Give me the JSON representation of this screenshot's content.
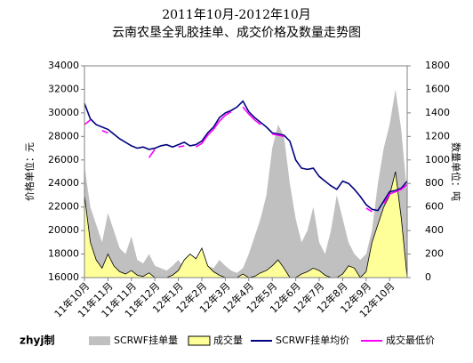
{
  "chart_data": {
    "type": "line",
    "title": "2011年10月-2012年10月",
    "subtitle": "云南农垦全乳胶挂单、成交价格及数量走势图",
    "y_label": "价格单位：元",
    "y2_label": "数量单位：吨",
    "credit": "zhyj制",
    "categories": [
      "11年10月",
      null,
      null,
      null,
      "11年11月",
      null,
      null,
      null,
      "11年11月",
      null,
      null,
      null,
      "11年12月",
      null,
      null,
      null,
      "12年1月",
      null,
      null,
      null,
      "12年2月",
      null,
      null,
      null,
      "12年3月",
      null,
      null,
      null,
      "12年4月",
      null,
      null,
      null,
      "12年5月",
      null,
      null,
      null,
      "12年6月",
      null,
      null,
      null,
      "12年7月",
      null,
      null,
      null,
      "12年8月",
      null,
      null,
      null,
      "12年9月",
      null,
      null,
      null,
      "12年10月",
      null,
      null,
      null
    ],
    "ylim": [
      16000,
      34000
    ],
    "yticks": [
      16000,
      18000,
      20000,
      22000,
      24000,
      26000,
      28000,
      30000,
      32000,
      34000
    ],
    "y2lim": [
      0,
      1800
    ],
    "y2ticks": [
      0,
      200,
      400,
      600,
      800,
      1000,
      1200,
      1400,
      1600,
      1800
    ],
    "grid": false,
    "legend": "bottom",
    "series": [
      {
        "name": "SCRWF挂单量",
        "kind": "area",
        "axis": "y2",
        "color": "#c0c0c0",
        "values": [
          950,
          600,
          450,
          300,
          550,
          400,
          250,
          200,
          350,
          150,
          120,
          200,
          100,
          80,
          60,
          100,
          150,
          80,
          50,
          120,
          200,
          100,
          80,
          150,
          100,
          60,
          40,
          80,
          200,
          350,
          500,
          700,
          1100,
          1300,
          1200,
          800,
          500,
          300,
          400,
          600,
          300,
          200,
          400,
          700,
          500,
          300,
          200,
          150,
          200,
          400,
          800,
          1100,
          1300,
          1600,
          1250,
          700
        ]
      },
      {
        "name": "成交量",
        "kind": "area",
        "axis": "y2",
        "color": "#ffff99",
        "values": [
          700,
          300,
          150,
          80,
          200,
          100,
          50,
          30,
          60,
          20,
          10,
          40,
          0,
          0,
          0,
          20,
          60,
          150,
          200,
          160,
          250,
          100,
          50,
          20,
          0,
          0,
          0,
          30,
          0,
          10,
          40,
          60,
          100,
          150,
          80,
          0,
          0,
          30,
          50,
          80,
          60,
          20,
          0,
          0,
          30,
          100,
          80,
          0,
          50,
          300,
          450,
          600,
          700,
          900,
          500,
          0
        ]
      },
      {
        "name": "SCRWF挂单均价",
        "kind": "line",
        "axis": "y",
        "color": "#000080",
        "values": [
          30800,
          29500,
          29000,
          28800,
          28600,
          28200,
          27800,
          27500,
          27200,
          27000,
          27100,
          26900,
          27000,
          27200,
          27300,
          27100,
          27300,
          27500,
          27200,
          27300,
          27600,
          28300,
          28800,
          29600,
          30000,
          30200,
          30500,
          31000,
          30100,
          29600,
          29200,
          28800,
          28300,
          28200,
          28100,
          27600,
          26000,
          25300,
          25200,
          25300,
          24600,
          24200,
          23800,
          23500,
          24200,
          24000,
          23500,
          22900,
          22200,
          21800,
          21700,
          22500,
          23300,
          23400,
          23600,
          24200
        ]
      },
      {
        "name": "成交最低价",
        "kind": "line",
        "axis": "y",
        "color": "#ff00ff",
        "values": [
          29000,
          29400,
          null,
          28500,
          28300,
          null,
          27300,
          null,
          26800,
          null,
          null,
          26200,
          26900,
          null,
          27100,
          null,
          27100,
          27200,
          null,
          27100,
          27400,
          28100,
          28600,
          29300,
          29800,
          30100,
          null,
          30500,
          29900,
          29400,
          29000,
          null,
          28200,
          28100,
          28000,
          null,
          null,
          25200,
          null,
          null,
          24400,
          null,
          23600,
          null,
          23900,
          null,
          23300,
          null,
          21900,
          21600,
          null,
          22300,
          23100,
          23300,
          23500,
          23900
        ]
      }
    ]
  }
}
